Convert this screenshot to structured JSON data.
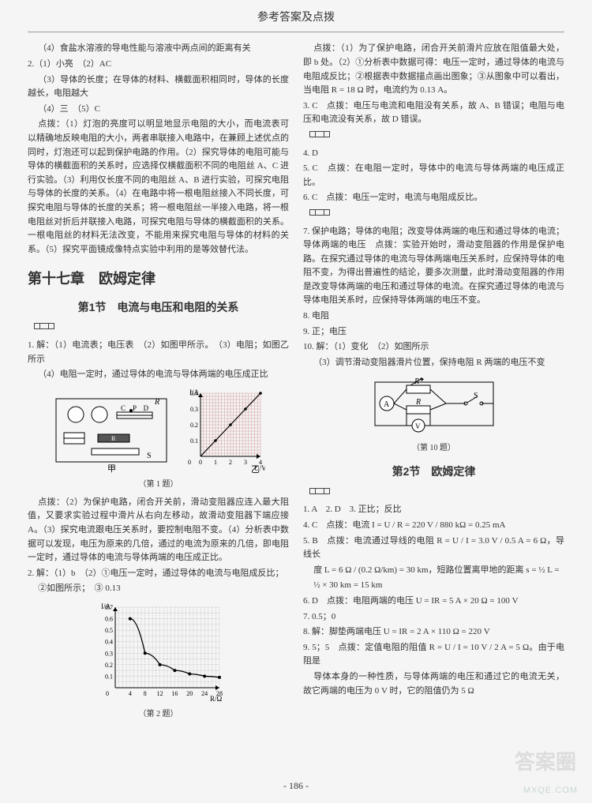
{
  "header": {
    "title": "参考答案及点拨"
  },
  "left": {
    "p1": "（4）食盐水溶液的导电性能与溶液中两点间的距离有关",
    "p2": "2.（1）小亮　（2）AC",
    "p3": "（3）导体的长度；在导体的材料、横截面积相同时，导体的长度越长，电阻越大",
    "p4": "（4）三　（5）C",
    "p5a": "点拨：（1）灯泡的亮度可以明显地显示电阻的大小，而电流表可以精确地反映电阻的大小，两者串联接入电路中，在兼顾上述优点的同时，灯泡还可以起到保护电路的作用。（2）探究导体的电阻可能与导体的横截面积的关系时，应选择仅横截面积不同的电阻丝 A、C 进行实验。（3）利用仅长度不同的电阻丝 A、B 进行实验，可探究电阻与导体的长度的关系。（4）在电路中将一根电阻丝接入不同长度，可探究电阻与导体的长度的关系；将一根电阻丝一半接入电路，将一根电阻丝对折后并联接入电路，可探究电阻与导体的横截面积的关系。一根电阻丝的材料无法改变，不能用来探究电阻与导体的材料的关系。（5）探究平面镜成像特点实验中利用的是等效替代法。",
    "chapter": "第十七章　欧姆定律",
    "section1": "第1节　电流与电压和电阻的关系",
    "q1a": "1. 解：（1）电流表；电压表　（2）如图甲所示。　（3）电阻；如图乙所示",
    "q1b": "（4）电阻一定时，通过导体的电流与导体两端的电压成正比",
    "fig1_caption": "（第 1 题）",
    "q1db": "点拨：（2）为保护电路，闭合开关前，滑动变阻器应连入最大阻值，又要求实验过程中滑片从右向左移动，故滑动变阻器下端应接A。（3）探究电流跟电压关系时，要控制电阻不变。（4）分析表中数据可以发现，电压为原来的几倍，通过的电流为原来的几倍，即电阻一定时，通过导体的电流与导体两端的电压成正比。",
    "q2a": "2. 解：（1）b　（2）①电压一定时，通过导体的电流与电阻成反比；",
    "q2b": "②如图所示；　③ 0.13",
    "fig2_caption": "（第 2 题）",
    "chart1": {
      "type": "line",
      "x_label": "U/V",
      "y_label": "I/A",
      "xlim": [
        0,
        4
      ],
      "ylim": [
        0,
        0.4
      ],
      "xticks": [
        0,
        1,
        2,
        3,
        4
      ],
      "yticks": [
        0,
        0.1,
        0.2,
        0.3,
        0.4
      ],
      "points": [
        [
          0,
          0
        ],
        [
          1,
          0.1
        ],
        [
          2,
          0.2
        ],
        [
          3,
          0.3
        ],
        [
          4,
          0.4
        ]
      ],
      "line_color": "#000",
      "grid_color": "#c88",
      "background": "#fff"
    },
    "chart2": {
      "type": "scatter-line",
      "x_label": "R/Ω",
      "y_label": "I/A",
      "xlim": [
        0,
        28
      ],
      "ylim": [
        0,
        0.7
      ],
      "xticks": [
        4,
        8,
        12,
        16,
        20,
        24,
        28
      ],
      "yticks": [
        0.1,
        0.2,
        0.3,
        0.4,
        0.5,
        0.6,
        0.7
      ],
      "points": [
        [
          4,
          0.6
        ],
        [
          8,
          0.3
        ],
        [
          12,
          0.2
        ],
        [
          16,
          0.15
        ],
        [
          20,
          0.12
        ],
        [
          24,
          0.1
        ],
        [
          28,
          0.09
        ]
      ],
      "line_color": "#000",
      "grid_color": "#777",
      "background": "#fff",
      "marker": "dot"
    }
  },
  "right": {
    "p1": "点拨：（1）为了保护电路，闭合开关前滑片应放在阻值最大处，即 b 处。（2）①分析表中数据可得：电压一定时，通过导体的电流与电阻成反比；②根据表中数据描点画出图象；③从图象中可以看出，当电阻 R = 18 Ω 时，电流约为 0.13 A。",
    "p2": "3. C　点拨：电压与电流和电阻没有关系，故 A、B 错误；电阻与电压和电流没有关系，故 D 错误。",
    "p3": "4. D",
    "p4": "5. C　点拨：在电阻一定时，导体中的电流与导体两端的电压成正比。",
    "p5": "6. C　点拨：电压一定时，电流与电阻成反比。",
    "p6": "7. 保护电路；导体的电阻；改变导体两端的电压和通过导体的电流；导体两端的电压　点拨：实验开始时，滑动变阻器的作用是保护电路。在探究通过导体的电流与导体两端电压关系时，应保持导体的电阻不变，为得出普遍性的结论，要多次测量，此时滑动变阻器的作用是改变导体两端的电压和通过导体的电流。在探究通过导体的电流与导体电阻关系时，应保持导体两端的电压不变。",
    "p7": "8. 电阻",
    "p8": "9. 正；电压",
    "p9": "10. 解：（1）变化　（2）如图所示",
    "p10": "（3）调节滑动变阻器滑片位置，保持电阻 R 两端的电压不变",
    "fig3_caption": "（第 10 题）",
    "section2": "第2节　欧姆定律",
    "r1": "1. A　2. D　3. 正比；反比",
    "r2": "4. C　点拨：电流 I = U / R = 220 V / 880 kΩ = 0.25 mA",
    "r3": "5. B　点拨：电流通过导线的电阻 R = U / I = 3.0 V / 0.5 A = 6 Ω，导线长",
    "r3b": "度 L = 6 Ω / (0.2 Ω/km) = 30 km，短路位置离甲地的距离 s = ½ L =",
    "r3c": "½ × 30 km = 15 km",
    "r4": "6. D　点拨：电阻两端的电压 U = IR = 5 A × 20 Ω = 100 V",
    "r5": "7. 0.5；0",
    "r6": "8. 解：脚垫两端电压 U = IR = 2 A × 110 Ω = 220 V",
    "r7": "9. 5；5　点拨：定值电阻的阻值 R = U / I = 10 V / 2 A = 5 Ω。由于电阻是",
    "r7b": "导体本身的一种性质，与导体两端的电压和通过它的电流无关，故它两端的电压为 0 V 时，它的阻值仍为 5 Ω"
  },
  "footer": {
    "page": "- 186 -",
    "wm1": "答案圈",
    "wm2": "MXQE.COM"
  }
}
